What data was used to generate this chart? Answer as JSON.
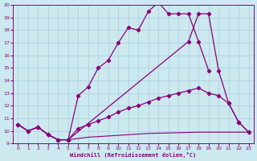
{
  "xlabel": "Windchill (Refroidissement éolien,°C)",
  "bg_color": "#cde9f0",
  "grid_color": "#aaccdd",
  "line_color": "#880077",
  "ylim": [
    9,
    20
  ],
  "yticks": [
    9,
    10,
    11,
    12,
    13,
    14,
    15,
    16,
    17,
    18,
    19,
    20
  ],
  "xticks": [
    0,
    1,
    2,
    3,
    4,
    5,
    6,
    7,
    8,
    9,
    10,
    11,
    12,
    13,
    14,
    15,
    16,
    17,
    18,
    19,
    20,
    21,
    22,
    23
  ],
  "line1_x": [
    0,
    1,
    2,
    3,
    4,
    5,
    6,
    7,
    8,
    9,
    10,
    11,
    12,
    13,
    14,
    15,
    16,
    17,
    18,
    19,
    20,
    21,
    22,
    23
  ],
  "line1_y": [
    10.5,
    10.0,
    10.3,
    9.7,
    9.3,
    9.3,
    12.8,
    13.5,
    15.0,
    15.6,
    17.0,
    18.2,
    18.0,
    19.5,
    20.2,
    19.3,
    19.3,
    19.3,
    17.1,
    14.8,
    null,
    null,
    null,
    null
  ],
  "line2_x": [
    0,
    1,
    2,
    3,
    4,
    5,
    6,
    7,
    8,
    9,
    10,
    11,
    12,
    13,
    14,
    15,
    16,
    17,
    18,
    19,
    20,
    21,
    22,
    23
  ],
  "line2_y": [
    10.5,
    10.0,
    10.3,
    9.7,
    9.3,
    9.3,
    null,
    null,
    null,
    null,
    null,
    null,
    null,
    null,
    null,
    null,
    null,
    17.1,
    19.3,
    19.3,
    14.8,
    12.2,
    10.7,
    9.9
  ],
  "line3_x": [
    0,
    1,
    2,
    3,
    4,
    5,
    6,
    7,
    8,
    9,
    10,
    11,
    12,
    13,
    14,
    15,
    16,
    17,
    18,
    19,
    20,
    21,
    22,
    23
  ],
  "line3_y": [
    10.5,
    10.0,
    10.3,
    9.7,
    9.3,
    9.3,
    10.2,
    10.5,
    10.8,
    11.1,
    11.5,
    11.8,
    12.0,
    12.3,
    12.6,
    12.8,
    13.0,
    13.2,
    13.4,
    13.0,
    12.8,
    12.2,
    10.7,
    9.9
  ],
  "line4_x": [
    0,
    1,
    2,
    3,
    4,
    5,
    6,
    7,
    8,
    9,
    10,
    11,
    12,
    13,
    14,
    15,
    16,
    17,
    18,
    19,
    20,
    21,
    22,
    23
  ],
  "line4_y": [
    10.5,
    10.0,
    10.3,
    9.7,
    9.3,
    9.3,
    9.4,
    9.5,
    9.55,
    9.6,
    9.65,
    9.7,
    9.75,
    9.8,
    9.82,
    9.84,
    9.86,
    9.88,
    9.9,
    9.9,
    9.9,
    9.9,
    9.9,
    9.9
  ],
  "marker": "D",
  "markersize": 2.2,
  "linewidth": 0.9
}
